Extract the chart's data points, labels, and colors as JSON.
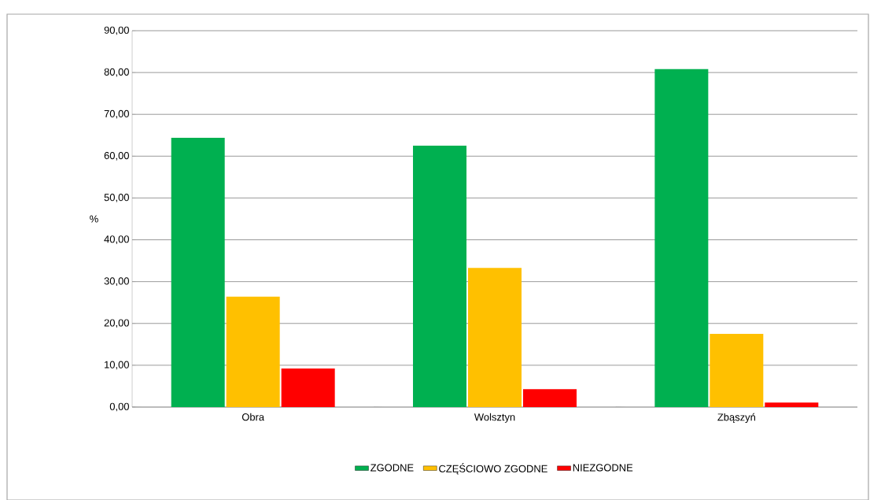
{
  "chart_data": {
    "type": "bar",
    "ylabel": "%",
    "categories": [
      "Obra",
      "Wolsztyn",
      "Zbąszyń"
    ],
    "series": [
      {
        "name": "ZGODNE",
        "color": "#00b050",
        "values": [
          64.4,
          62.5,
          80.8
        ]
      },
      {
        "name": "CZĘŚCIOWO ZGODNE",
        "color": "#ffc000",
        "values": [
          26.4,
          33.3,
          17.5
        ]
      },
      {
        "name": "NIEZGODNE",
        "color": "#ff0000",
        "values": [
          9.2,
          4.3,
          1.1
        ]
      }
    ],
    "ylim": [
      0,
      90
    ],
    "yticks": [
      {
        "value": 0,
        "label": "0,00"
      },
      {
        "value": 10,
        "label": "10,00"
      },
      {
        "value": 20,
        "label": "20,00"
      },
      {
        "value": 30,
        "label": "30,00"
      },
      {
        "value": 40,
        "label": "40,00"
      },
      {
        "value": 50,
        "label": "50,00"
      },
      {
        "value": 60,
        "label": "60,00"
      },
      {
        "value": 70,
        "label": "70,00"
      },
      {
        "value": 80,
        "label": "80,00"
      },
      {
        "value": 90,
        "label": "90,00"
      }
    ],
    "grid": "y",
    "legend": "bottom"
  }
}
